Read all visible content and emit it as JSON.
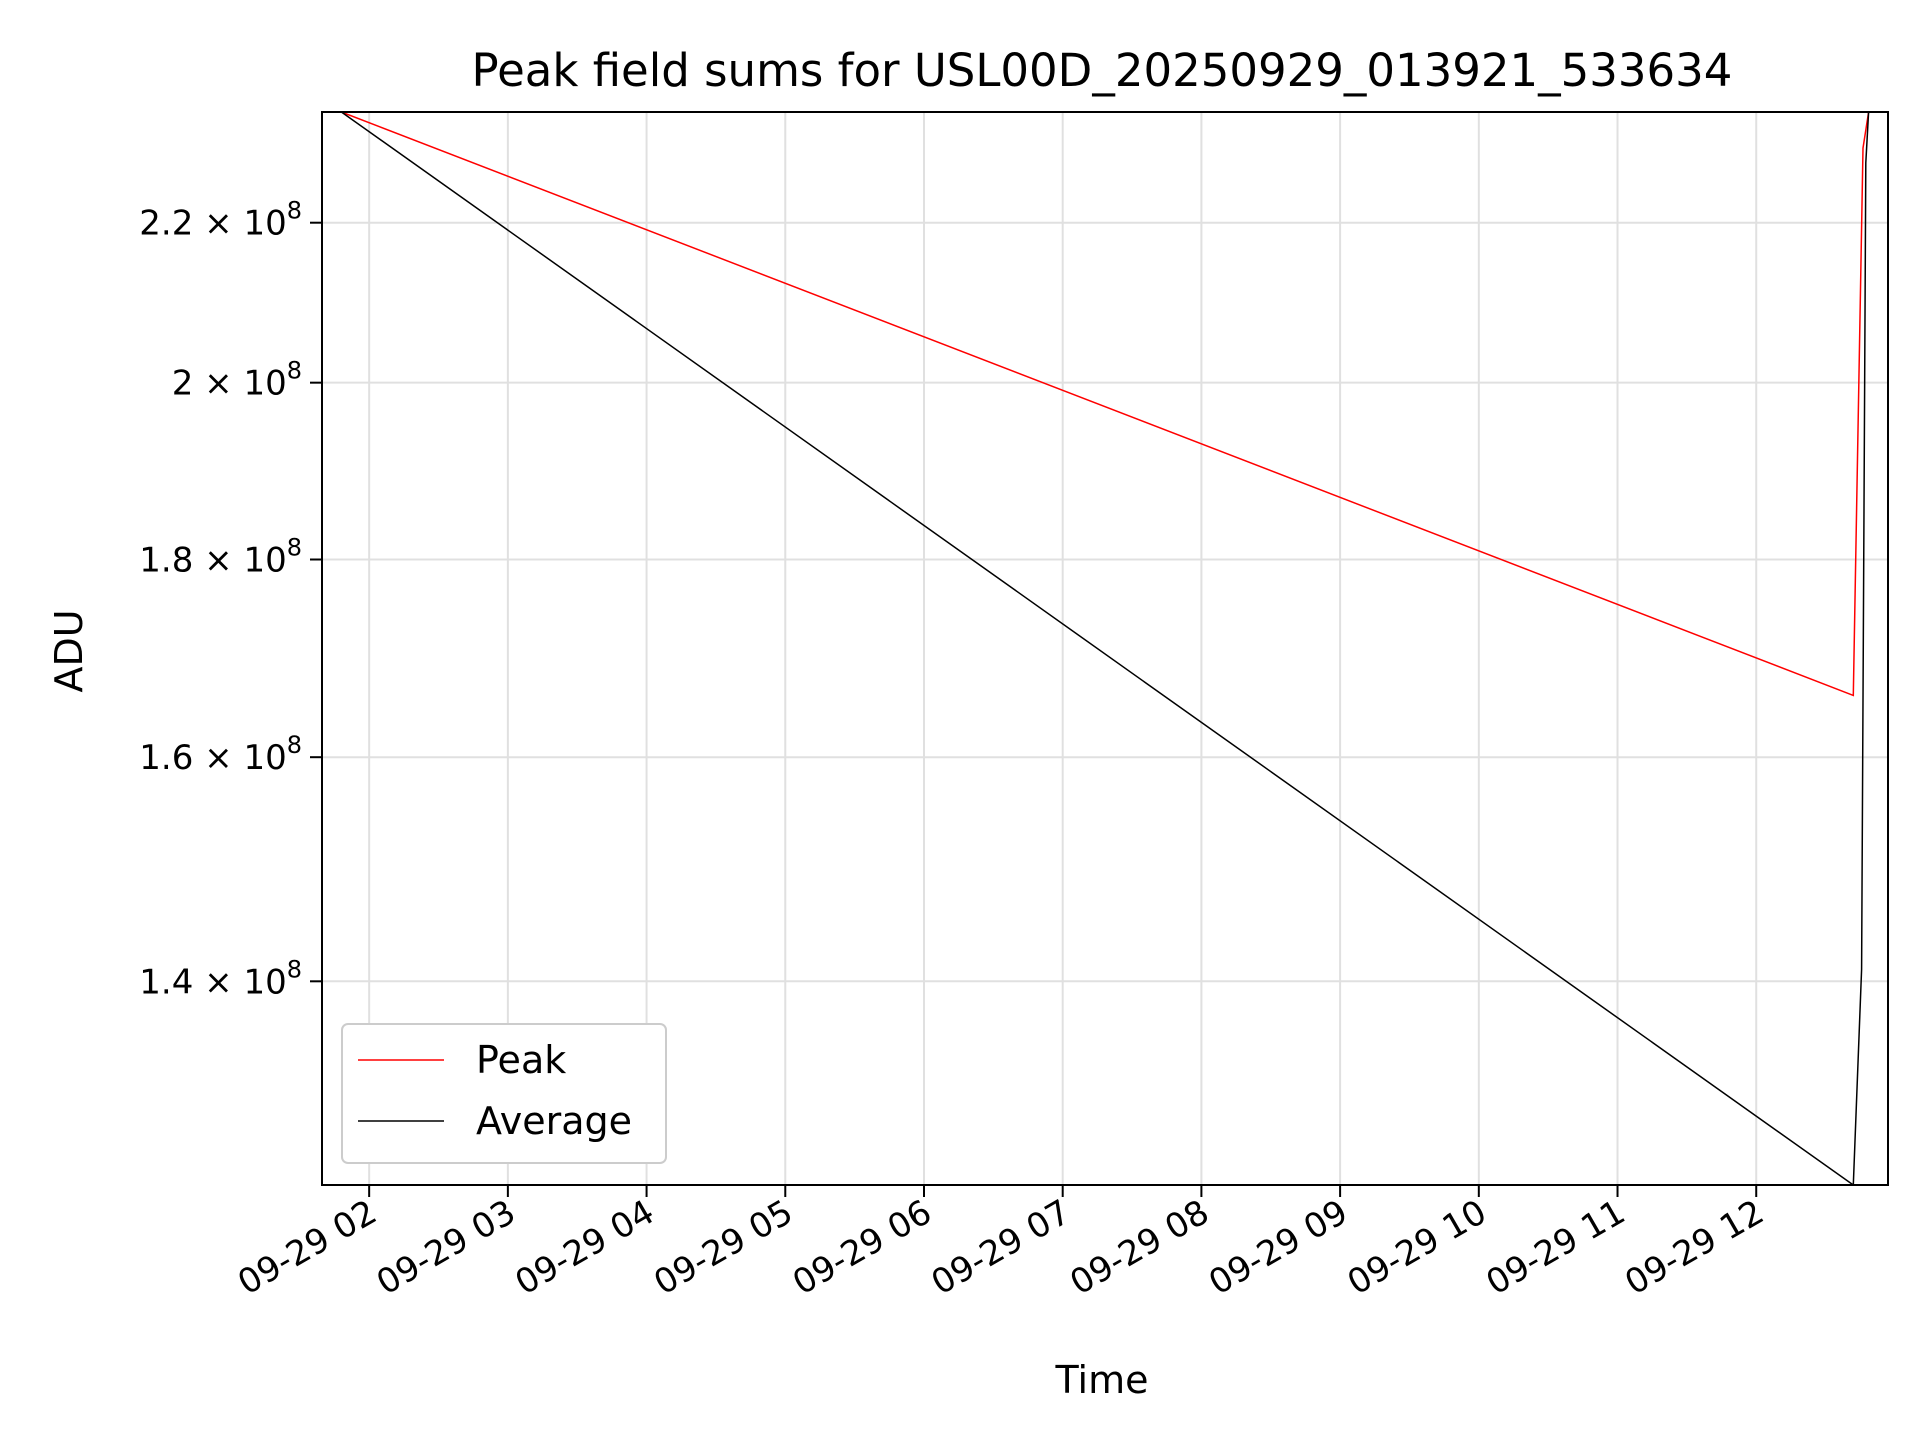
{
  "chart_data": {
    "type": "line",
    "title": "Peak field sums for USL00D_20250929_013921_533634",
    "xlabel": "Time",
    "ylabel": "ADU",
    "y_scale": "log",
    "x_unit": "hours since 09-29 00:00",
    "xlim": [
      1.66,
      12.95
    ],
    "ylim": [
      124000000,
      235000000
    ],
    "grid": true,
    "legend_position": "lower-left",
    "x_ticks": [
      2,
      3,
      4,
      5,
      6,
      7,
      8,
      9,
      10,
      11,
      12
    ],
    "x_tick_labels": [
      "09-29 02",
      "09-29 03",
      "09-29 04",
      "09-29 05",
      "09-29 06",
      "09-29 07",
      "09-29 08",
      "09-29 09",
      "09-29 10",
      "09-29 11",
      "09-29 12"
    ],
    "y_ticks": [
      140000000,
      160000000,
      180000000,
      200000000,
      220000000
    ],
    "y_tick_labels": [
      {
        "mantissa": "1.4",
        "exp": "8"
      },
      {
        "mantissa": "1.6",
        "exp": "8"
      },
      {
        "mantissa": "1.8",
        "exp": "8"
      },
      {
        "mantissa": "2",
        "exp": "8"
      },
      {
        "mantissa": "2.2",
        "exp": "8"
      }
    ],
    "series": [
      {
        "name": "Peak",
        "color": "#ff0000",
        "x": [
          1.8,
          12.7,
          12.77,
          12.81
        ],
        "y": [
          235000000,
          166000000,
          230000000,
          235000000
        ]
      },
      {
        "name": "Average",
        "color": "#000000",
        "x": [
          1.8,
          12.7,
          12.76,
          12.79,
          12.81
        ],
        "y": [
          235000000,
          124000000,
          141000000,
          228000000,
          235000000
        ]
      }
    ]
  }
}
